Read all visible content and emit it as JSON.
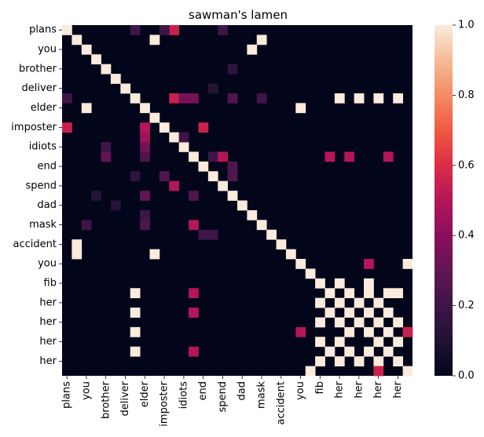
{
  "chart_data": {
    "type": "heatmap",
    "title": "sawman's lamen",
    "labels": [
      "plans",
      "",
      "you",
      "",
      "brother",
      "",
      "deliver",
      "",
      "elder",
      "",
      "imposter",
      "",
      "idiots",
      "",
      "end",
      "",
      "spend",
      "",
      "dad",
      "",
      "mask",
      "",
      "accident",
      "",
      "you",
      "",
      "fib",
      "",
      "her",
      "",
      "her",
      "",
      "her",
      "",
      "her",
      ""
    ],
    "value_range": [
      0.0,
      1.0
    ],
    "colorbar_ticks": [
      "0.0",
      "0.2",
      "0.4",
      "0.6",
      "0.8",
      "1.0"
    ],
    "colormap": "rocket",
    "offdiag_cells": [
      [
        0,
        11,
        0.55
      ],
      [
        0,
        7,
        0.2
      ],
      [
        0,
        10,
        0.2
      ],
      [
        0,
        16,
        0.2
      ],
      [
        1,
        9,
        1.0
      ],
      [
        1,
        20,
        1.0
      ],
      [
        2,
        19,
        1.0
      ],
      [
        4,
        17,
        0.15
      ],
      [
        6,
        15,
        0.12
      ],
      [
        7,
        0,
        0.2
      ],
      [
        7,
        11,
        0.55
      ],
      [
        7,
        12,
        0.35
      ],
      [
        7,
        13,
        0.35
      ],
      [
        7,
        17,
        0.25
      ],
      [
        7,
        20,
        0.2
      ],
      [
        7,
        28,
        1.0
      ],
      [
        7,
        30,
        1.0
      ],
      [
        7,
        32,
        1.0
      ],
      [
        7,
        34,
        1.0
      ],
      [
        8,
        2,
        1.0
      ],
      [
        8,
        24,
        1.0
      ],
      [
        10,
        0,
        0.55
      ],
      [
        10,
        8,
        0.5
      ],
      [
        10,
        14,
        0.55
      ],
      [
        11,
        8,
        0.45
      ],
      [
        11,
        12,
        0.2
      ],
      [
        12,
        4,
        0.2
      ],
      [
        12,
        8,
        0.35
      ],
      [
        13,
        4,
        0.3
      ],
      [
        13,
        8,
        0.25
      ],
      [
        13,
        15,
        0.2
      ],
      [
        13,
        16,
        0.5
      ],
      [
        13,
        27,
        0.5
      ],
      [
        13,
        29,
        0.5
      ],
      [
        13,
        33,
        0.5
      ],
      [
        14,
        17,
        0.25
      ],
      [
        15,
        7,
        0.15
      ],
      [
        15,
        10,
        0.25
      ],
      [
        15,
        17,
        0.25
      ],
      [
        16,
        11,
        0.5
      ],
      [
        17,
        3,
        0.12
      ],
      [
        17,
        8,
        0.3
      ],
      [
        17,
        13,
        0.25
      ],
      [
        18,
        5,
        0.12
      ],
      [
        19,
        8,
        0.2
      ],
      [
        20,
        2,
        0.2
      ],
      [
        20,
        8,
        0.25
      ],
      [
        20,
        13,
        0.5
      ],
      [
        21,
        14,
        0.2
      ],
      [
        21,
        15,
        0.2
      ],
      [
        22,
        1,
        1.0
      ],
      [
        23,
        1,
        1.0
      ],
      [
        23,
        9,
        1.0
      ],
      [
        24,
        31,
        0.5
      ],
      [
        24,
        35,
        1.0
      ],
      [
        26,
        28,
        1.0
      ],
      [
        26,
        31,
        1.0
      ],
      [
        27,
        7,
        1.0
      ],
      [
        27,
        13,
        0.5
      ],
      [
        27,
        29,
        1.0
      ],
      [
        27,
        31,
        1.0
      ],
      [
        27,
        33,
        1.0
      ],
      [
        27,
        34,
        1.0
      ],
      [
        28,
        26,
        1.0
      ],
      [
        28,
        30,
        1.0
      ],
      [
        28,
        32,
        1.0
      ],
      [
        29,
        7,
        1.0
      ],
      [
        29,
        13,
        0.5
      ],
      [
        29,
        27,
        1.0
      ],
      [
        29,
        31,
        1.0
      ],
      [
        29,
        33,
        1.0
      ],
      [
        30,
        26,
        1.0
      ],
      [
        30,
        28,
        1.0
      ],
      [
        30,
        32,
        1.0
      ],
      [
        30,
        34,
        1.0
      ],
      [
        31,
        7,
        1.0
      ],
      [
        31,
        24,
        0.5
      ],
      [
        31,
        29,
        1.0
      ],
      [
        31,
        33,
        1.0
      ],
      [
        31,
        35,
        0.55
      ],
      [
        32,
        26,
        1.0
      ],
      [
        32,
        28,
        1.0
      ],
      [
        32,
        34,
        1.0
      ],
      [
        33,
        7,
        1.0
      ],
      [
        33,
        13,
        0.5
      ],
      [
        33,
        27,
        1.0
      ],
      [
        33,
        29,
        1.0
      ],
      [
        33,
        31,
        1.0
      ],
      [
        34,
        26,
        1.0
      ],
      [
        34,
        28,
        1.0
      ],
      [
        34,
        30,
        1.0
      ],
      [
        34,
        32,
        1.0
      ],
      [
        35,
        25,
        1.0
      ],
      [
        35,
        32,
        0.55
      ]
    ]
  }
}
